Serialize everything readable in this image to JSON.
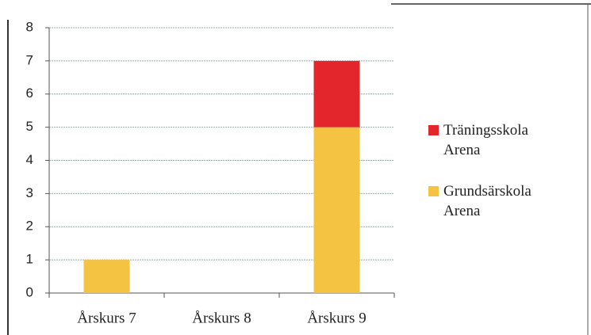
{
  "chart_data": {
    "type": "bar",
    "stacked": true,
    "categories": [
      "Årskurs 7",
      "Årskurs 8",
      "Årskurs 9"
    ],
    "series": [
      {
        "name": "Träningsskola Arena",
        "color": "#e3262b",
        "values": [
          0,
          0,
          2
        ]
      },
      {
        "name": "Grundsärskola Arena",
        "color": "#f5c342",
        "values": [
          1,
          0,
          5
        ]
      }
    ],
    "ylim": [
      0,
      8
    ],
    "yticks": [
      0,
      1,
      2,
      3,
      4,
      5,
      6,
      7,
      8
    ],
    "grid": true,
    "legend": "right"
  }
}
